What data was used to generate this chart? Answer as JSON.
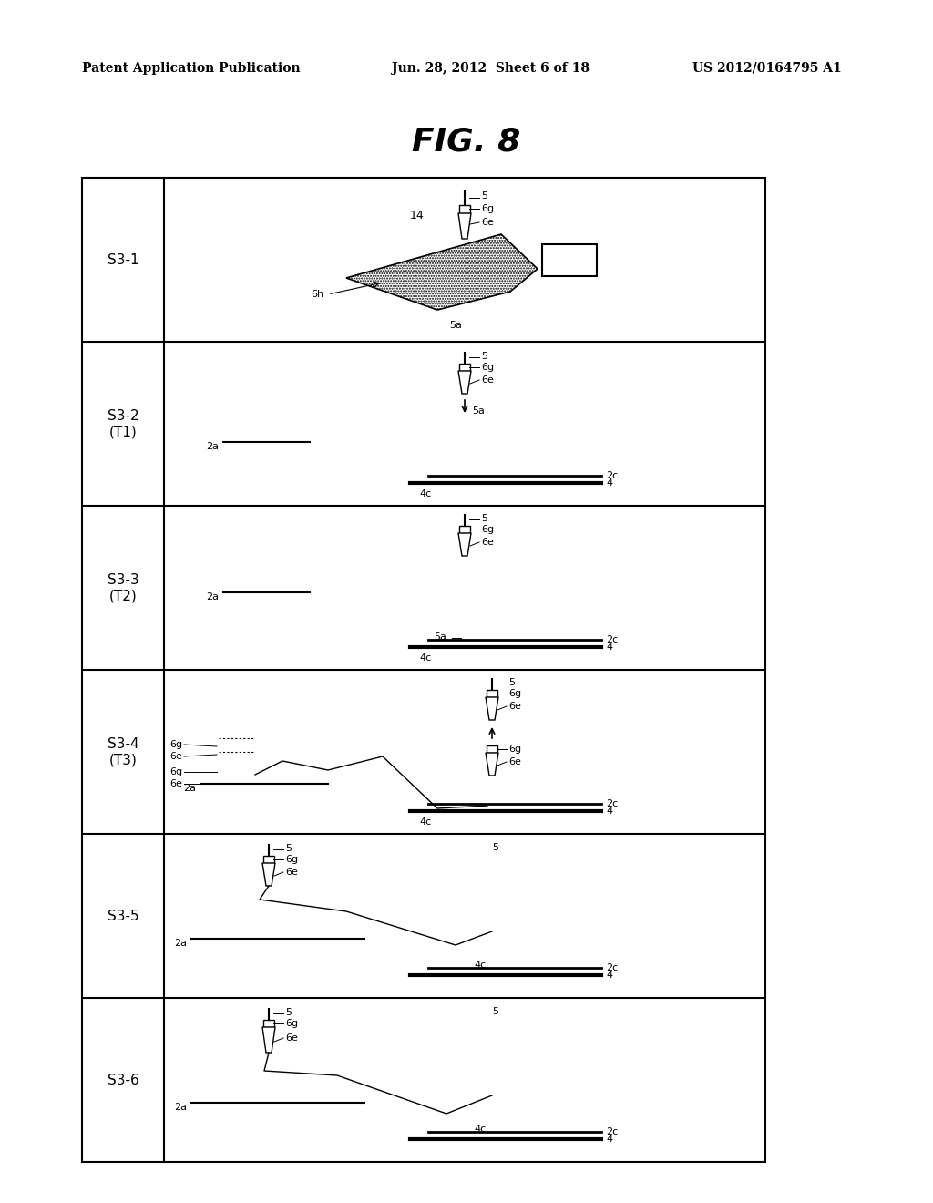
{
  "title": "FIG. 8",
  "header_left": "Patent Application Publication",
  "header_mid": "Jun. 28, 2012  Sheet 6 of 18",
  "header_right": "US 2012/0164795 A1",
  "bg_color": "#ffffff",
  "steps": [
    "S3-1",
    "S3-2\n(T1)",
    "S3-3\n(T2)",
    "S3-4\n(T3)",
    "S3-5",
    "S3-6"
  ],
  "border_color": "#000000"
}
